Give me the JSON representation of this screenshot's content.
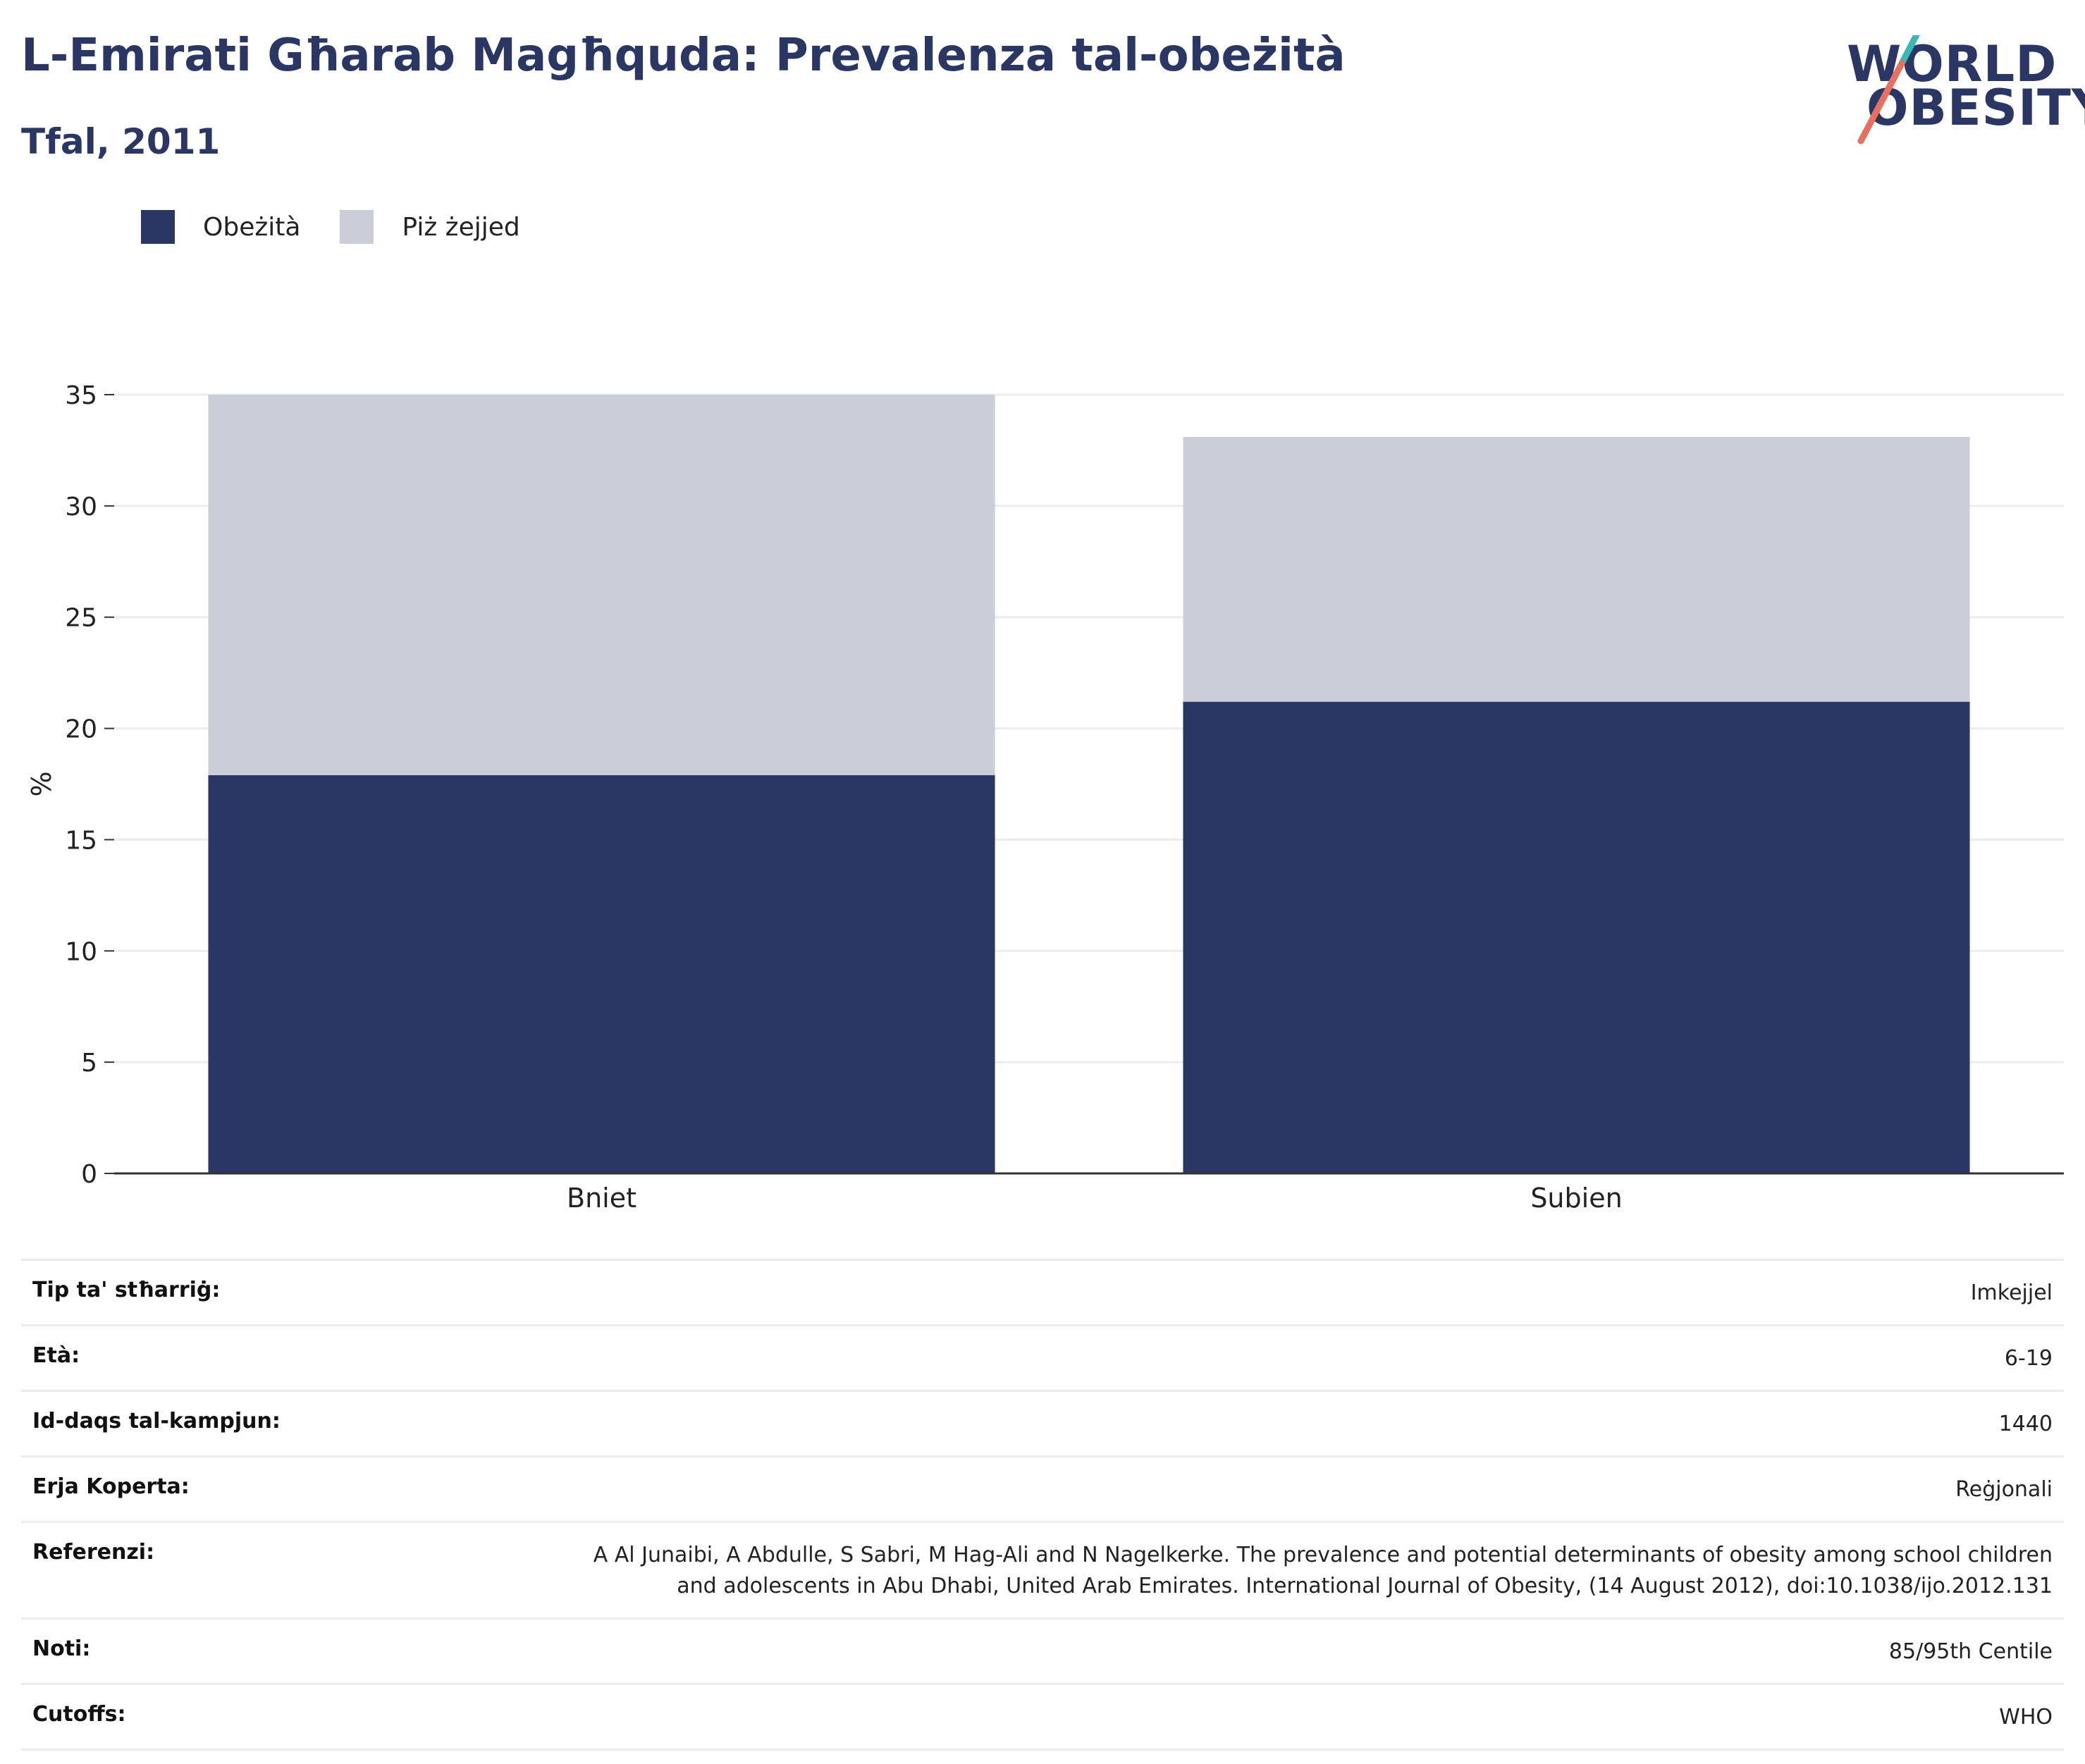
{
  "header": {
    "title": "L-Emirati Għarab Magħquda: Prevalenza tal-obeżità",
    "subtitle": "Tfal, 2011",
    "logo_text_1": "WORLD",
    "logo_text_2": "OBESITY"
  },
  "legend": {
    "items": [
      {
        "label": "Obeżità",
        "color": "#2a3663"
      },
      {
        "label": "Piż żejjed",
        "color": "#cbcdd9"
      }
    ]
  },
  "chart_data": {
    "type": "bar",
    "stacked": true,
    "categories": [
      "Bniet",
      "Subien"
    ],
    "series": [
      {
        "name": "Obeżità",
        "values": [
          17.9,
          21.2
        ],
        "color": "#2a3663"
      },
      {
        "name": "Piż żejjed",
        "values": [
          17.1,
          11.9
        ],
        "color": "#cbcdd9"
      }
    ],
    "ylabel": "%",
    "ylim": [
      0,
      35
    ],
    "yticks": [
      0,
      5,
      10,
      15,
      20,
      25,
      30,
      35
    ],
    "grid": true,
    "legend_position": "top-left"
  },
  "meta": {
    "rows": [
      {
        "key": "Tip ta' stħarriġ:",
        "value": "Imkejjel"
      },
      {
        "key": "Età:",
        "value": "6-19"
      },
      {
        "key": "Id-daqs tal-kampjun:",
        "value": "1440"
      },
      {
        "key": "Erja Koperta:",
        "value": "Reġjonali"
      },
      {
        "key": "Referenzi:",
        "value": "A Al Junaibi, A Abdulle, S Sabri, M Hag-Ali and N Nagelkerke. The prevalence and potential determinants of obesity among school children and adolescents in Abu Dhabi, United Arab Emirates. International Journal of Obesity, (14 August 2012), doi:10.1038/ijo.2012.131"
      },
      {
        "key": "Noti:",
        "value": "85/95th Centile"
      },
      {
        "key": "Cutoffs:",
        "value": "WHO"
      }
    ]
  }
}
